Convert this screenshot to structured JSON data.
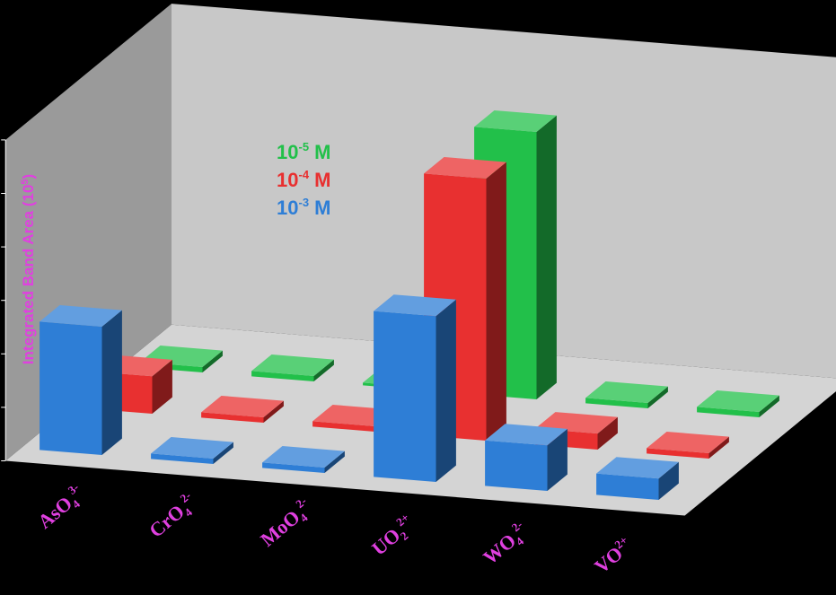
{
  "chart_data": {
    "type": "bar",
    "variant": "3d-clustered-depth",
    "ylabel": "Integrated Band Area (10",
    "ylabel_sup": "5",
    "ylabel_tail": ")",
    "ylim": [
      0,
      120
    ],
    "yticks": [
      0,
      20,
      40,
      60,
      80,
      100,
      120
    ],
    "categories": [
      {
        "base": "AsO",
        "sub": "4",
        "sup": "3-"
      },
      {
        "base": "CrO",
        "sub": "4",
        "sup": "2-"
      },
      {
        "base": "MoO",
        "sub": "4",
        "sup": "2-"
      },
      {
        "base": "UO",
        "sub": "2",
        "sup": "2+"
      },
      {
        "base": "WO",
        "sub": "4",
        "sup": "2-"
      },
      {
        "base": "VO",
        "sub": "",
        "sup": "2+"
      }
    ],
    "series": [
      {
        "name_base": "10",
        "name_sup": "-3",
        "name_unit": " M",
        "color": "#2e7ed6",
        "values": [
          48,
          2,
          2,
          62,
          17,
          8
        ]
      },
      {
        "name_base": "10",
        "name_sup": "-4",
        "name_unit": " M",
        "color": "#e83030",
        "values": [
          14,
          2,
          2,
          98,
          6,
          2
        ]
      },
      {
        "name_base": "10",
        "name_sup": "-5",
        "name_unit": " M",
        "color": "#22c04a",
        "values": [
          2,
          2,
          1,
          100,
          2,
          2
        ]
      }
    ],
    "legend_position": "top-left-inside",
    "grid": false,
    "background": "#000000",
    "floor_color": "#d4d4d4",
    "wall_color": "#c8c8c8"
  }
}
